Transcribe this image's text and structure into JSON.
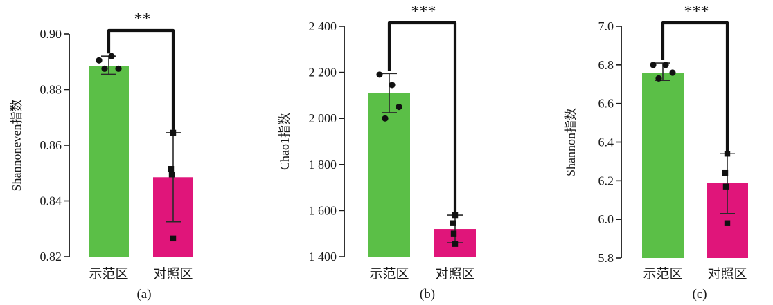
{
  "chart_data": [
    {
      "type": "bar",
      "panel_label": "(a)",
      "ylabel": "Shannoneven指数",
      "categories": [
        "示范区",
        "对照区"
      ],
      "values": [
        0.8885,
        0.8485
      ],
      "error": [
        [
          0.8855,
          0.892
        ],
        [
          0.8325,
          0.8645
        ]
      ],
      "points": [
        [
          0.8905,
          0.892,
          0.8875,
          0.8875
        ],
        [
          0.8645,
          0.8515,
          0.8495,
          0.8265
        ]
      ],
      "ylim": [
        0.82,
        0.9
      ],
      "yticks": [
        0.82,
        0.84,
        0.86,
        0.88,
        0.9
      ],
      "ytick_labels": [
        "0.82",
        "0.84",
        "0.86",
        "0.88",
        "0.90"
      ],
      "significance": "**",
      "grid": false
    },
    {
      "type": "bar",
      "panel_label": "(b)",
      "ylabel": "Chao1指数",
      "categories": [
        "示范区",
        "对照区"
      ],
      "values": [
        2110,
        1520
      ],
      "error": [
        [
          2025,
          2195
        ],
        [
          1460,
          1580
        ]
      ],
      "points": [
        [
          2190,
          2145,
          2050,
          2000
        ],
        [
          1580,
          1545,
          1500,
          1455
        ]
      ],
      "ylim": [
        1400,
        2400
      ],
      "yticks": [
        1400,
        1600,
        1800,
        2000,
        2200,
        2400
      ],
      "ytick_labels": [
        "1 400",
        "1 600",
        "1 800",
        "2 000",
        "2 200",
        "2 400"
      ],
      "significance": "***",
      "grid": false
    },
    {
      "type": "bar",
      "panel_label": "(c)",
      "ylabel": "Shannon指数",
      "categories": [
        "示范区",
        "对照区"
      ],
      "values": [
        6.76,
        6.19
      ],
      "error": [
        [
          6.72,
          6.81
        ],
        [
          6.03,
          6.34
        ]
      ],
      "points": [
        [
          6.8,
          6.8,
          6.76,
          6.73
        ],
        [
          6.34,
          6.24,
          6.17,
          5.98
        ]
      ],
      "ylim": [
        5.8,
        7.0
      ],
      "yticks": [
        5.8,
        6.0,
        6.2,
        6.4,
        6.6,
        6.8,
        7.0
      ],
      "ytick_labels": [
        "5.8",
        "6.0",
        "6.2",
        "6.4",
        "6.6",
        "6.8",
        "7.0"
      ],
      "significance": "***",
      "grid": false
    }
  ],
  "colors": {
    "bar_1": "#5bbf47",
    "bar_2": "#e0157a",
    "axis": "#1a1a1a"
  }
}
